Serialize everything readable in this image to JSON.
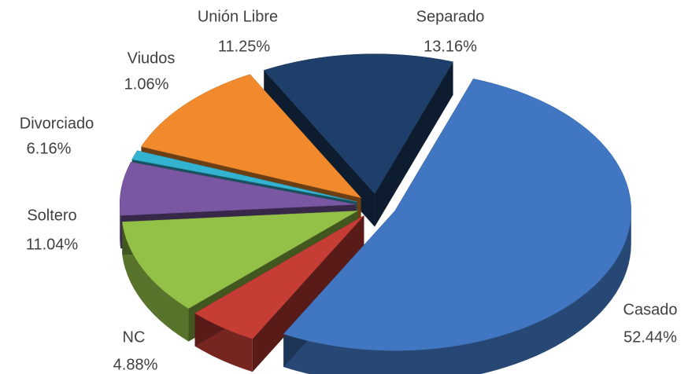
{
  "chart_data": {
    "type": "pie",
    "categories": [
      "Separado",
      "Casado",
      "NC",
      "Soltero",
      "Divorciado",
      "Viudos",
      "Unión Libre"
    ],
    "values": [
      13.16,
      52.44,
      4.88,
      11.04,
      6.16,
      1.06,
      11.25
    ],
    "value_labels": [
      "13.16%",
      "52.44%",
      "4.88%",
      "11.04%",
      "6.16%",
      "1.06%",
      "11.25%"
    ],
    "colors": [
      "#1f3f6b",
      "#4177c2",
      "#c63d36",
      "#93c047",
      "#7a57a2",
      "#33b3d1",
      "#f08a2c"
    ]
  }
}
